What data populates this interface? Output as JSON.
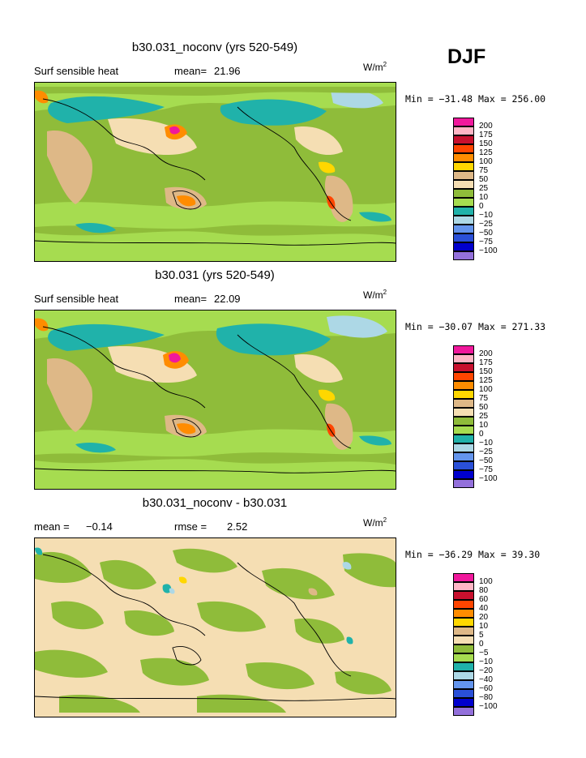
{
  "season": "DJF",
  "colors": {
    "pink_hot": "#f0189c",
    "pink_light": "#ffb5c5",
    "dark_red": "#c8102e",
    "orange_red": "#ff4500",
    "orange": "#ff8c00",
    "yellow": "#ffd700",
    "tan": "#deb887",
    "beige": "#f5deb3",
    "green": "#8fbc3a",
    "light_green": "#a6dc50",
    "teal": "#20b2aa",
    "light_blue": "#add8e6",
    "mid_blue": "#6495ed",
    "blue": "#2a50d8",
    "dark_blue": "#0000cd",
    "purple": "#9370db"
  },
  "panels": [
    {
      "title": "b30.031_noconv (yrs 520-549)",
      "field": "Surf sensible heat",
      "mean_label": "mean=",
      "mean_value": "21.96",
      "units": "W/m",
      "units_exp": "2",
      "minmax": "Min = −31.48 Max = 256.00",
      "legend": [
        {
          "label": "200",
          "color": "#f0189c"
        },
        {
          "label": "175",
          "color": "#ffb5c5"
        },
        {
          "label": "150",
          "color": "#c8102e"
        },
        {
          "label": "125",
          "color": "#ff4500"
        },
        {
          "label": "100",
          "color": "#ff8c00"
        },
        {
          "label": "75",
          "color": "#ffd700"
        },
        {
          "label": "50",
          "color": "#deb887"
        },
        {
          "label": "25",
          "color": "#f5deb3"
        },
        {
          "label": "10",
          "color": "#8fbc3a"
        },
        {
          "label": "0",
          "color": "#a6dc50"
        },
        {
          "label": "−10",
          "color": "#20b2aa"
        },
        {
          "label": "−25",
          "color": "#add8e6"
        },
        {
          "label": "−50",
          "color": "#6495ed"
        },
        {
          "label": "−75",
          "color": "#2a50d8"
        },
        {
          "label": "−100",
          "color": "#0000cd"
        },
        {
          "label": "",
          "color": "#9370db"
        }
      ]
    },
    {
      "title": "b30.031 (yrs 520-549)",
      "field": "Surf sensible heat",
      "mean_label": "mean=",
      "mean_value": "22.09",
      "units": "W/m",
      "units_exp": "2",
      "minmax": "Min = −30.07 Max = 271.33",
      "legend": [
        {
          "label": "200",
          "color": "#f0189c"
        },
        {
          "label": "175",
          "color": "#ffb5c5"
        },
        {
          "label": "150",
          "color": "#c8102e"
        },
        {
          "label": "125",
          "color": "#ff4500"
        },
        {
          "label": "100",
          "color": "#ff8c00"
        },
        {
          "label": "75",
          "color": "#ffd700"
        },
        {
          "label": "50",
          "color": "#deb887"
        },
        {
          "label": "25",
          "color": "#f5deb3"
        },
        {
          "label": "10",
          "color": "#8fbc3a"
        },
        {
          "label": "0",
          "color": "#a6dc50"
        },
        {
          "label": "−10",
          "color": "#20b2aa"
        },
        {
          "label": "−25",
          "color": "#add8e6"
        },
        {
          "label": "−50",
          "color": "#6495ed"
        },
        {
          "label": "−75",
          "color": "#2a50d8"
        },
        {
          "label": "−100",
          "color": "#0000cd"
        },
        {
          "label": "",
          "color": "#9370db"
        }
      ]
    },
    {
      "title": "b30.031_noconv - b30.031",
      "mean_label": "mean =",
      "mean_value": "−0.14",
      "rmse_label": "rmse =",
      "rmse_value": "2.52",
      "units": "W/m",
      "units_exp": "2",
      "minmax": "Min = −36.29 Max =  39.30",
      "legend": [
        {
          "label": "100",
          "color": "#f0189c"
        },
        {
          "label": "80",
          "color": "#ffb5c5"
        },
        {
          "label": "60",
          "color": "#c8102e"
        },
        {
          "label": "40",
          "color": "#ff4500"
        },
        {
          "label": "20",
          "color": "#ff8c00"
        },
        {
          "label": "10",
          "color": "#ffd700"
        },
        {
          "label": "5",
          "color": "#deb887"
        },
        {
          "label": "0",
          "color": "#f5deb3"
        },
        {
          "label": "−5",
          "color": "#8fbc3a"
        },
        {
          "label": "−10",
          "color": "#a6dc50"
        },
        {
          "label": "−20",
          "color": "#20b2aa"
        },
        {
          "label": "−40",
          "color": "#add8e6"
        },
        {
          "label": "−60",
          "color": "#6495ed"
        },
        {
          "label": "−80",
          "color": "#2a50d8"
        },
        {
          "label": "−100",
          "color": "#0000cd"
        },
        {
          "label": "",
          "color": "#9370db"
        }
      ]
    }
  ]
}
